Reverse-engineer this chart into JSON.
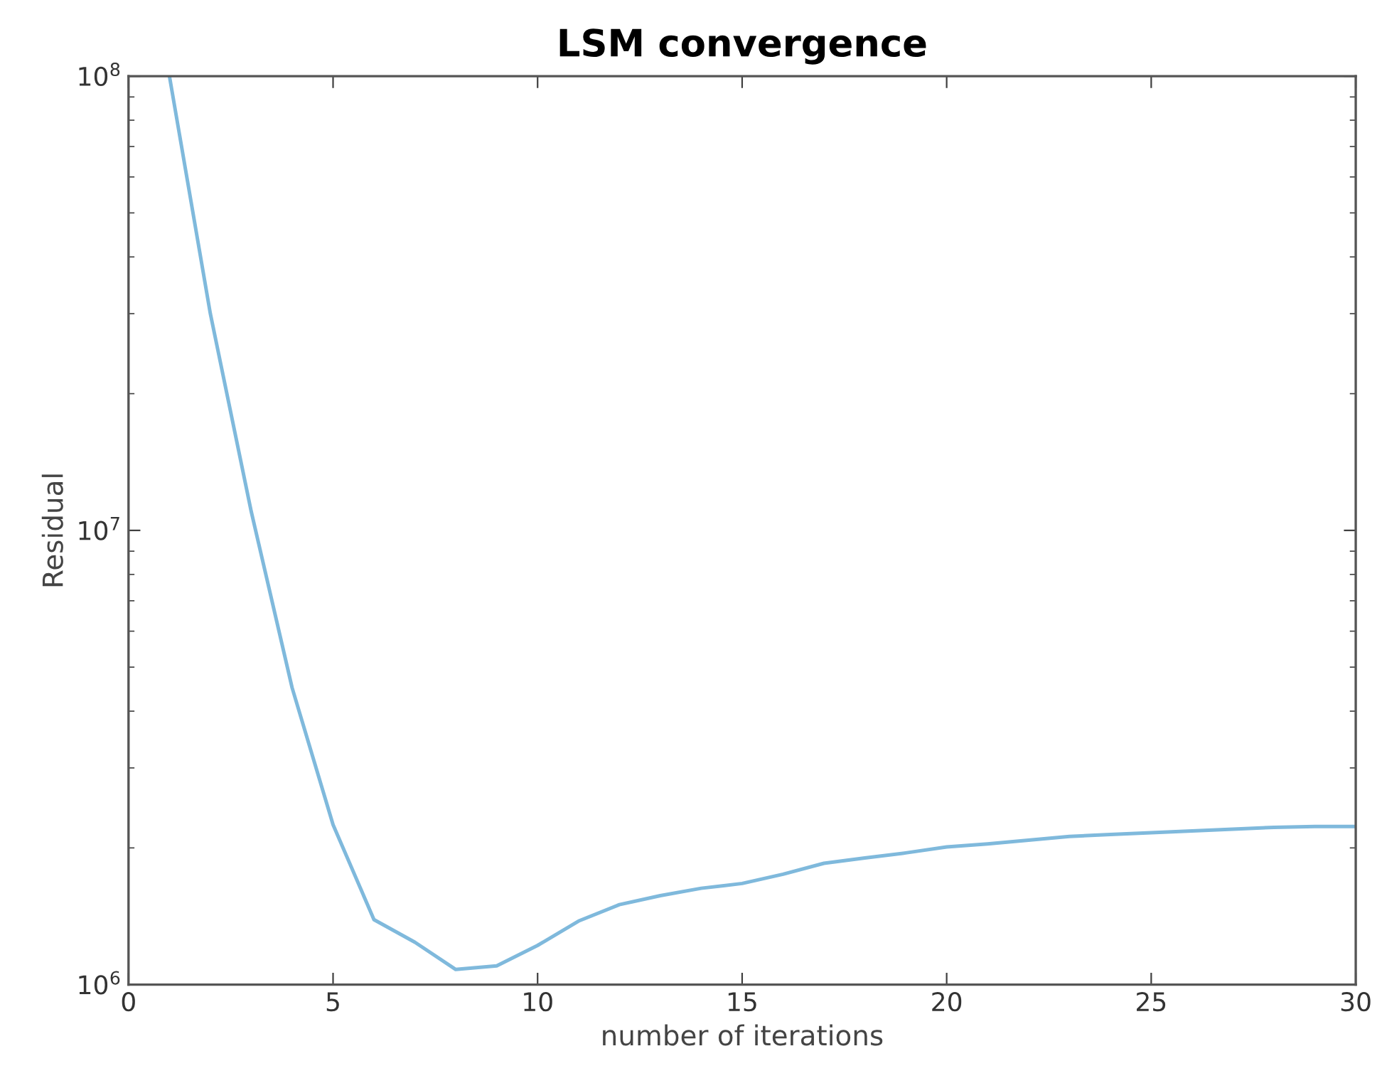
{
  "chart_data": {
    "type": "line",
    "title": "LSM convergence",
    "xlabel": "number of iterations",
    "ylabel": "Residual",
    "log": "y",
    "grid": false,
    "marker": "none",
    "line_style": "solid",
    "xlim": [
      0,
      30
    ],
    "xticks": [
      0,
      5,
      10,
      15,
      20,
      25,
      30
    ],
    "ylim": [
      1000000,
      100000000
    ],
    "yticks": [
      {
        "value": 1000000,
        "label": "10$^{6}$"
      },
      {
        "value": 10000000,
        "label": "10$^{7}$"
      },
      {
        "value": 100000000,
        "label": "10$^{8}$"
      }
    ],
    "x": [
      1,
      2,
      3,
      4,
      5,
      6,
      7,
      8,
      9,
      10,
      11,
      12,
      13,
      14,
      15,
      16,
      17,
      18,
      19,
      20,
      21,
      22,
      23,
      24,
      25,
      26,
      27,
      28,
      29,
      30
    ],
    "series": [
      {
        "color": "#7fb9dc",
        "values": [
          100000000,
          30000000,
          11000000,
          4500000,
          2250000,
          1390000,
          1240000,
          1080000,
          1100000,
          1220000,
          1380000,
          1500000,
          1570000,
          1630000,
          1670000,
          1750000,
          1850000,
          1900000,
          1950000,
          2010000,
          2040000,
          2080000,
          2120000,
          2140000,
          2160000,
          2180000,
          2200000,
          2220000,
          2230000,
          2230000
        ]
      }
    ]
  }
}
